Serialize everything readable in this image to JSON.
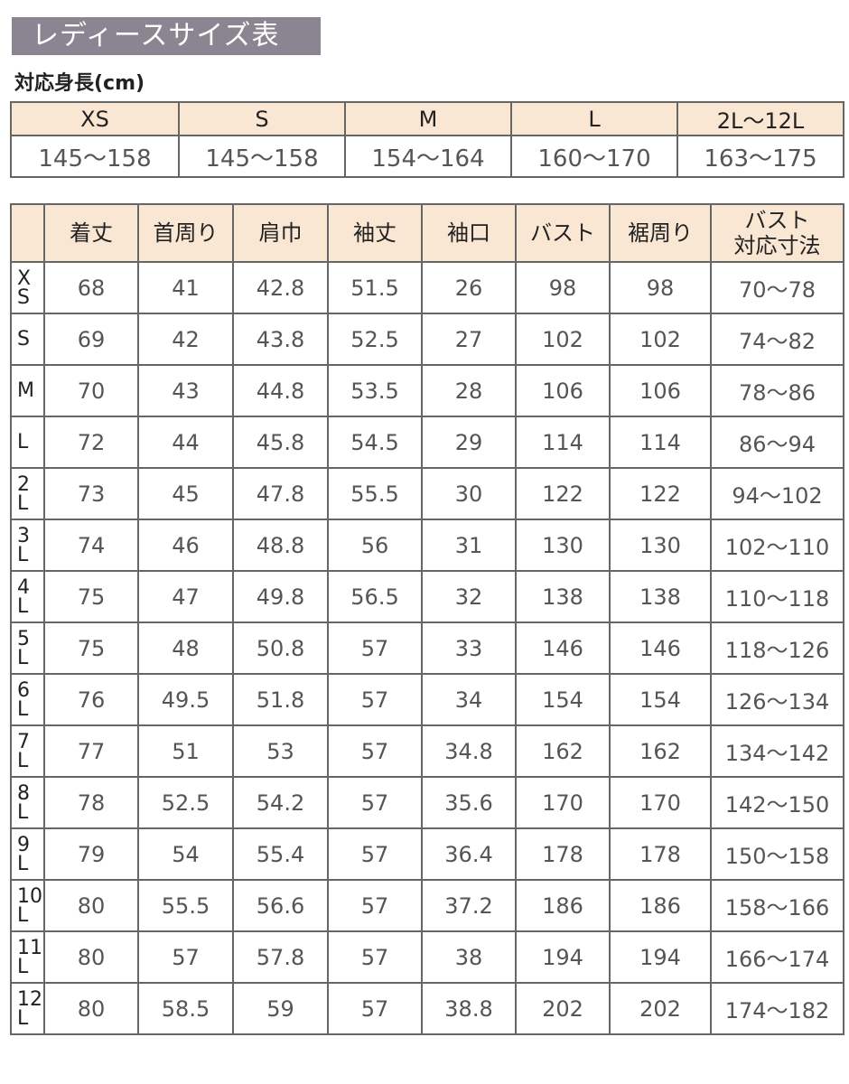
{
  "title": "レディースサイズ表",
  "height_table": {
    "label": "対応身長(cm)",
    "sizes": [
      "XS",
      "S",
      "M",
      "L",
      "2L〜12L"
    ],
    "ranges": [
      "145〜158",
      "145〜158",
      "154〜164",
      "160〜170",
      "163〜175"
    ]
  },
  "size_table": {
    "headers": [
      "",
      "着丈",
      "首周り",
      "肩巾",
      "袖丈",
      "袖口",
      "バスト",
      "裾周り",
      "バスト\n対応寸法"
    ],
    "rows": [
      {
        "size": "X\nS",
        "values": [
          "68",
          "41",
          "42.8",
          "51.5",
          "26",
          "98",
          "98",
          "70〜78"
        ]
      },
      {
        "size": "S",
        "values": [
          "69",
          "42",
          "43.8",
          "52.5",
          "27",
          "102",
          "102",
          "74〜82"
        ]
      },
      {
        "size": "M",
        "values": [
          "70",
          "43",
          "44.8",
          "53.5",
          "28",
          "106",
          "106",
          "78〜86"
        ]
      },
      {
        "size": "L",
        "values": [
          "72",
          "44",
          "45.8",
          "54.5",
          "29",
          "114",
          "114",
          "86〜94"
        ]
      },
      {
        "size": "2\nL",
        "values": [
          "73",
          "45",
          "47.8",
          "55.5",
          "30",
          "122",
          "122",
          "94〜102"
        ]
      },
      {
        "size": "3\nL",
        "values": [
          "74",
          "46",
          "48.8",
          "56",
          "31",
          "130",
          "130",
          "102〜110"
        ]
      },
      {
        "size": "4\nL",
        "values": [
          "75",
          "47",
          "49.8",
          "56.5",
          "32",
          "138",
          "138",
          "110〜118"
        ]
      },
      {
        "size": "5\nL",
        "values": [
          "75",
          "48",
          "50.8",
          "57",
          "33",
          "146",
          "146",
          "118〜126"
        ]
      },
      {
        "size": "6\nL",
        "values": [
          "76",
          "49.5",
          "51.8",
          "57",
          "34",
          "154",
          "154",
          "126〜134"
        ]
      },
      {
        "size": "7\nL",
        "values": [
          "77",
          "51",
          "53",
          "57",
          "34.8",
          "162",
          "162",
          "134〜142"
        ]
      },
      {
        "size": "8\nL",
        "values": [
          "78",
          "52.5",
          "54.2",
          "57",
          "35.6",
          "170",
          "170",
          "142〜150"
        ]
      },
      {
        "size": "9\nL",
        "values": [
          "79",
          "54",
          "55.4",
          "57",
          "36.4",
          "178",
          "178",
          "150〜158"
        ]
      },
      {
        "size": "10\nL",
        "values": [
          "80",
          "55.5",
          "56.6",
          "57",
          "37.2",
          "186",
          "186",
          "158〜166"
        ]
      },
      {
        "size": "11\nL",
        "values": [
          "80",
          "57",
          "57.8",
          "57",
          "38",
          "194",
          "194",
          "166〜174"
        ]
      },
      {
        "size": "12\nL",
        "values": [
          "80",
          "58.5",
          "59",
          "57",
          "38.8",
          "202",
          "202",
          "174〜182"
        ]
      }
    ]
  },
  "colors": {
    "title_bg": "#8a8590",
    "header_bg": "#f9e6d3",
    "grid": "#666666"
  }
}
